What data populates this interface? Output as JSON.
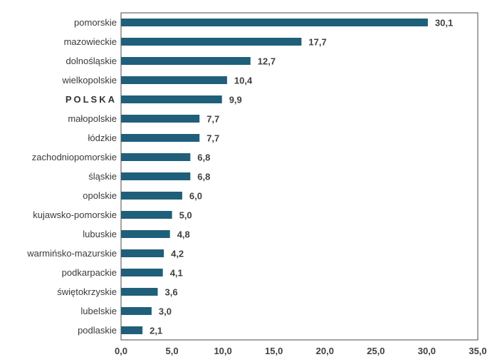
{
  "chart_data": {
    "type": "bar",
    "orientation": "horizontal",
    "categories": [
      "pomorskie",
      "mazowieckie",
      "dolnośląskie",
      "wielkopolskie",
      "POLSKA",
      "małopolskie",
      "łódzkie",
      "zachodniopomorskie",
      "śląskie",
      "opolskie",
      "kujawsko-pomorskie",
      "lubuskie",
      "warmińsko-mazurskie",
      "podkarpackie",
      "świętokrzyskie",
      "lubelskie",
      "podlaskie"
    ],
    "values": [
      30.1,
      17.7,
      12.7,
      10.4,
      9.9,
      7.7,
      7.7,
      6.8,
      6.8,
      6.0,
      5.0,
      4.8,
      4.2,
      4.1,
      3.6,
      3.0,
      2.1
    ],
    "value_labels": [
      "30,1",
      "17,7",
      "12,7",
      "10,4",
      "9,9",
      "7,7",
      "7,7",
      "6,8",
      "6,8",
      "6,0",
      "5,0",
      "4,8",
      "4,2",
      "4,1",
      "3,6",
      "3,0",
      "2,1"
    ],
    "emphasized_category": "POLSKA",
    "xlim": [
      0,
      35
    ],
    "x_ticks": [
      0,
      5,
      10,
      15,
      20,
      25,
      30,
      35
    ],
    "x_tick_labels": [
      "0,0",
      "5,0",
      "10,0",
      "15,0",
      "20,0",
      "25,0",
      "30,0",
      "35,0"
    ],
    "title": "",
    "xlabel": "",
    "ylabel": "",
    "grid": false,
    "legend": "none",
    "bar_color": "#1f5f7a",
    "frame_color": "#4a4a4a"
  }
}
